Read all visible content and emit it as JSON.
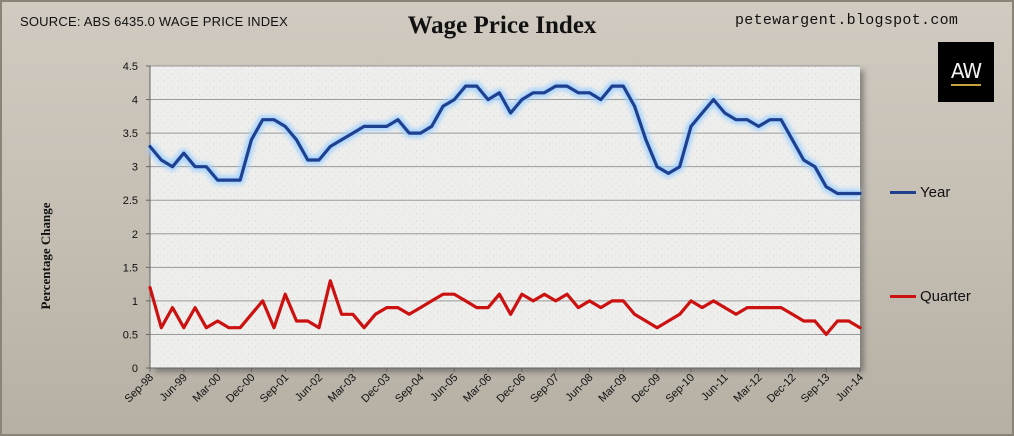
{
  "header": {
    "source": "SOURCE: ABS 6435.0 WAGE PRICE INDEX",
    "blog": "petewargent.blogspot.com",
    "logo_text": "AW"
  },
  "colors": {
    "year": "#1f3f8f",
    "quarter": "#cc1111",
    "plot_bg": "#eeeeec",
    "grid": "#9a9a9a"
  },
  "chart_data": {
    "type": "line",
    "title": "Wage Price Index",
    "xlabel": "",
    "ylabel": "Percentage Change",
    "ylim": [
      0,
      4.5
    ],
    "yticks": [
      "0",
      "0.5",
      "1",
      "1.5",
      "2",
      "2.5",
      "3",
      "3.5",
      "4",
      "4.5"
    ],
    "grid": "horizontal",
    "legend_position": "right",
    "x_tick_labels": [
      "Sep-98",
      "Jun-99",
      "Mar-00",
      "Dec-00",
      "Sep-01",
      "Jun-02",
      "Mar-03",
      "Dec-03",
      "Sep-04",
      "Jun-05",
      "Mar-06",
      "Dec-06",
      "Sep-07",
      "Jun-08",
      "Mar-09",
      "Dec-09",
      "Sep-10",
      "Jun-11",
      "Mar-12",
      "Dec-12",
      "Sep-13",
      "Jun-14"
    ],
    "x": [
      "Sep-98",
      "Dec-98",
      "Mar-99",
      "Jun-99",
      "Sep-99",
      "Dec-99",
      "Mar-00",
      "Jun-00",
      "Sep-00",
      "Dec-00",
      "Mar-01",
      "Jun-01",
      "Sep-01",
      "Dec-01",
      "Mar-02",
      "Jun-02",
      "Sep-02",
      "Dec-02",
      "Mar-03",
      "Jun-03",
      "Sep-03",
      "Dec-03",
      "Mar-04",
      "Jun-04",
      "Sep-04",
      "Dec-04",
      "Mar-05",
      "Jun-05",
      "Sep-05",
      "Dec-05",
      "Mar-06",
      "Jun-06",
      "Sep-06",
      "Dec-06",
      "Mar-07",
      "Jun-07",
      "Sep-07",
      "Dec-07",
      "Mar-08",
      "Jun-08",
      "Sep-08",
      "Dec-08",
      "Mar-09",
      "Jun-09",
      "Sep-09",
      "Dec-09",
      "Mar-10",
      "Jun-10",
      "Sep-10",
      "Dec-10",
      "Mar-11",
      "Jun-11",
      "Sep-11",
      "Dec-11",
      "Mar-12",
      "Jun-12",
      "Sep-12",
      "Dec-12",
      "Mar-13",
      "Jun-13",
      "Sep-13",
      "Dec-13",
      "Mar-14",
      "Jun-14"
    ],
    "series": [
      {
        "name": "Year",
        "values": [
          3.3,
          3.1,
          3.0,
          3.2,
          3.0,
          3.0,
          2.8,
          2.8,
          2.8,
          3.4,
          3.7,
          3.7,
          3.6,
          3.4,
          3.1,
          3.1,
          3.3,
          3.4,
          3.5,
          3.6,
          3.6,
          3.6,
          3.7,
          3.5,
          3.5,
          3.6,
          3.9,
          4.0,
          4.2,
          4.2,
          4.0,
          4.1,
          3.8,
          4.0,
          4.1,
          4.1,
          4.2,
          4.2,
          4.1,
          4.1,
          4.0,
          4.2,
          4.2,
          3.9,
          3.4,
          3.0,
          2.9,
          3.0,
          3.6,
          3.8,
          4.0,
          3.8,
          3.7,
          3.7,
          3.6,
          3.7,
          3.7,
          3.4,
          3.1,
          3.0,
          2.7,
          2.6,
          2.6,
          2.6
        ]
      },
      {
        "name": "Quarter",
        "values": [
          1.2,
          0.6,
          0.9,
          0.6,
          0.9,
          0.6,
          0.7,
          0.6,
          0.6,
          0.8,
          1.0,
          0.6,
          1.1,
          0.7,
          0.7,
          0.6,
          1.3,
          0.8,
          0.8,
          0.6,
          0.8,
          0.9,
          0.9,
          0.8,
          0.9,
          1.0,
          1.1,
          1.1,
          1.0,
          0.9,
          0.9,
          1.1,
          0.8,
          1.1,
          1.0,
          1.1,
          1.0,
          1.1,
          0.9,
          1.0,
          0.9,
          1.0,
          1.0,
          0.8,
          0.7,
          0.6,
          0.7,
          0.8,
          1.0,
          0.9,
          1.0,
          0.9,
          0.8,
          0.9,
          0.9,
          0.9,
          0.9,
          0.8,
          0.7,
          0.7,
          0.5,
          0.7,
          0.7,
          0.6
        ]
      }
    ]
  }
}
